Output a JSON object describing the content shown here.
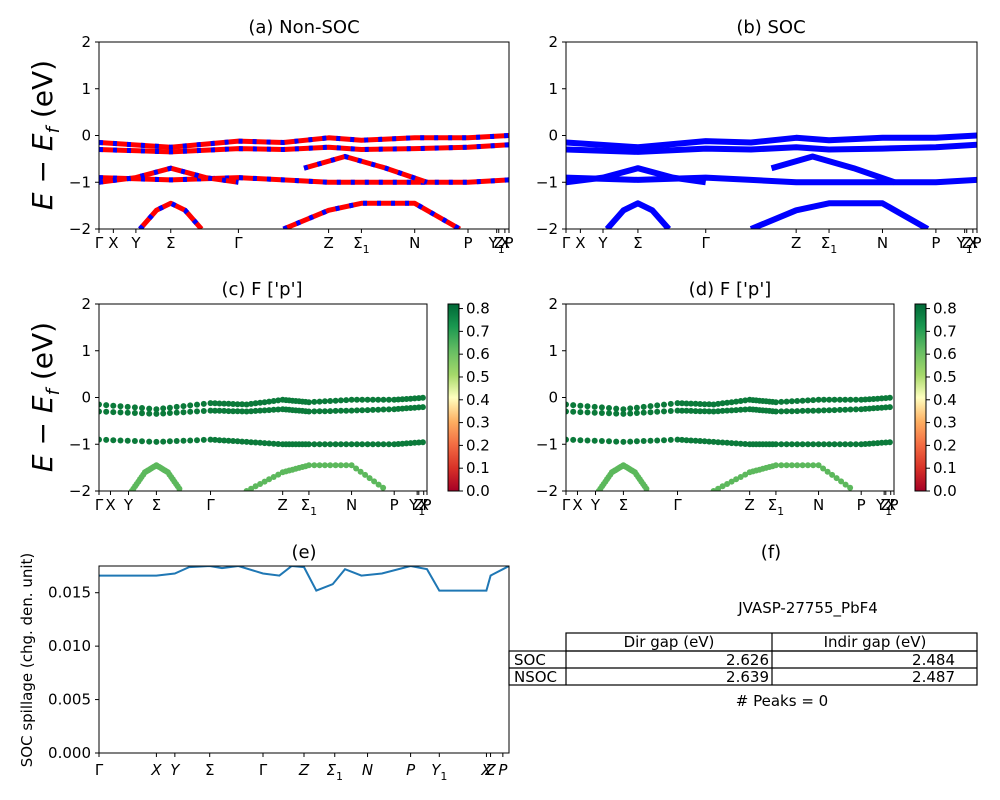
{
  "figure": {
    "panels": [
      {
        "id": "a",
        "title": "(a) Non-SOC"
      },
      {
        "id": "b",
        "title": "(b) SOC"
      },
      {
        "id": "c",
        "title": "(c)  F ['p']"
      },
      {
        "id": "d",
        "title": "(d) F ['p']"
      },
      {
        "id": "e",
        "title": "(e)"
      },
      {
        "id": "f",
        "title": "(f)"
      }
    ],
    "band_ylabel": "E − E_f (eV)",
    "band_ylim": [
      -2,
      2
    ],
    "band_yticks": [
      "2",
      "1",
      "0",
      "−1",
      "−2"
    ],
    "kpath_labels": [
      "Γ",
      "X",
      "Y",
      "Σ",
      "Γ",
      "Z",
      "Σ1",
      "N",
      "P",
      "Y1",
      "Z",
      "X",
      "P"
    ],
    "kpath_positions": [
      0,
      0.035,
      0.09,
      0.175,
      0.34,
      0.56,
      0.64,
      0.77,
      0.9,
      0.97,
      0.975,
      0.99,
      1.0
    ],
    "colorbar": {
      "ticks": [
        "0.0",
        "0.1",
        "0.2",
        "0.3",
        "0.4",
        "0.5",
        "0.6",
        "0.7",
        "0.8"
      ],
      "min": 0.0,
      "max": 0.82,
      "colormap": "RdYlGn"
    },
    "colors": {
      "nsoc_a": "#ff0000",
      "nsoc_b": "#0000ff",
      "soc": "#0000ff",
      "spillage": "#1f77b4",
      "proj_high": "#0b7a3a",
      "proj_mid": "#5cb85c"
    }
  },
  "chart_data": [
    {
      "type": "line",
      "panel": "a",
      "title": "(a) Non-SOC",
      "ylabel": "E − E_f (eV)",
      "ylim": [
        -2,
        2
      ],
      "x_ticks": [
        "Γ",
        "X",
        "Y",
        "Σ",
        "Γ",
        "Z",
        "Σ1",
        "N",
        "P",
        "ZY1",
        "X",
        "P"
      ],
      "series": [
        {
          "x": [
            0,
            0.175,
            0.34,
            0.45,
            0.56,
            0.64,
            0.77,
            0.9,
            1.0
          ],
          "y": [
            -0.15,
            -0.25,
            -0.12,
            -0.15,
            -0.05,
            -0.1,
            -0.05,
            -0.05,
            0.0
          ]
        },
        {
          "x": [
            0,
            0.175,
            0.34,
            0.45,
            0.56,
            0.64,
            0.77,
            0.9,
            1.0
          ],
          "y": [
            -0.3,
            -0.35,
            -0.28,
            -0.3,
            -0.25,
            -0.3,
            -0.28,
            -0.25,
            -0.2
          ]
        },
        {
          "x": [
            0,
            0.175,
            0.34,
            0.45,
            0.56,
            0.64,
            0.77,
            0.9,
            1.0
          ],
          "y": [
            -0.9,
            -0.95,
            -0.9,
            -0.95,
            -1.0,
            -1.0,
            -1.0,
            -1.0,
            -0.95
          ]
        },
        {
          "x": [
            0,
            0.09,
            0.175,
            0.26,
            0.34
          ],
          "y": [
            -1.0,
            -0.9,
            -0.7,
            -0.9,
            -1.0
          ]
        },
        {
          "x": [
            0.1,
            0.14,
            0.175,
            0.21,
            0.25
          ],
          "y": [
            -2.0,
            -1.6,
            -1.45,
            -1.6,
            -2.0
          ]
        },
        {
          "x": [
            0.45,
            0.56,
            0.64,
            0.77,
            0.88
          ],
          "y": [
            -2.0,
            -1.6,
            -1.45,
            -1.45,
            -2.0
          ]
        },
        {
          "x": [
            0.5,
            0.6,
            0.7,
            0.8
          ],
          "y": [
            -0.7,
            -0.45,
            -0.7,
            -1.0
          ]
        }
      ]
    },
    {
      "type": "line",
      "panel": "b",
      "title": "(b) SOC",
      "ylabel": "",
      "ylim": [
        -2,
        2
      ],
      "x_ticks": [
        "Γ",
        "X",
        "Y",
        "Σ",
        "Γ",
        "Z",
        "Σ1",
        "N",
        "P",
        "ZY1",
        "X",
        "P"
      ],
      "series": [
        {
          "x": [
            0,
            0.175,
            0.34,
            0.45,
            0.56,
            0.64,
            0.77,
            0.9,
            1.0
          ],
          "y": [
            -0.15,
            -0.25,
            -0.12,
            -0.15,
            -0.05,
            -0.1,
            -0.05,
            -0.05,
            0.0
          ]
        },
        {
          "x": [
            0,
            0.175,
            0.34,
            0.45,
            0.56,
            0.64,
            0.77,
            0.9,
            1.0
          ],
          "y": [
            -0.3,
            -0.35,
            -0.28,
            -0.3,
            -0.25,
            -0.3,
            -0.28,
            -0.25,
            -0.2
          ]
        },
        {
          "x": [
            0,
            0.175,
            0.34,
            0.45,
            0.56,
            0.64,
            0.77,
            0.9,
            1.0
          ],
          "y": [
            -0.9,
            -0.95,
            -0.9,
            -0.95,
            -1.0,
            -1.0,
            -1.0,
            -1.0,
            -0.95
          ]
        },
        {
          "x": [
            0,
            0.09,
            0.175,
            0.26,
            0.34
          ],
          "y": [
            -1.0,
            -0.9,
            -0.7,
            -0.9,
            -1.0
          ]
        },
        {
          "x": [
            0.1,
            0.14,
            0.175,
            0.21,
            0.25
          ],
          "y": [
            -2.0,
            -1.6,
            -1.45,
            -1.6,
            -2.0
          ]
        },
        {
          "x": [
            0.45,
            0.56,
            0.64,
            0.77,
            0.88
          ],
          "y": [
            -2.0,
            -1.6,
            -1.45,
            -1.45,
            -2.0
          ]
        },
        {
          "x": [
            0.5,
            0.6,
            0.7,
            0.8
          ],
          "y": [
            -0.7,
            -0.45,
            -0.7,
            -1.0
          ]
        }
      ]
    },
    {
      "type": "scatter",
      "panel": "c",
      "title": "(c)  F ['p']",
      "ylim": [
        -2,
        2
      ],
      "colorbar_range": [
        0.0,
        0.82
      ],
      "x_ticks": [
        "Γ",
        "X",
        "Y",
        "Σ",
        "Γ",
        "Z",
        "Σ1",
        "N",
        "P",
        "ZY1",
        "X",
        "P"
      ],
      "series": [
        {
          "x": [
            0,
            0.175,
            0.34,
            0.45,
            0.56,
            0.64,
            0.77,
            0.9,
            1.0
          ],
          "y": [
            -0.15,
            -0.25,
            -0.12,
            -0.15,
            -0.05,
            -0.1,
            -0.05,
            -0.05,
            0.0
          ],
          "weight": 0.8
        },
        {
          "x": [
            0,
            0.175,
            0.34,
            0.45,
            0.56,
            0.64,
            0.77,
            0.9,
            1.0
          ],
          "y": [
            -0.3,
            -0.35,
            -0.28,
            -0.3,
            -0.25,
            -0.3,
            -0.28,
            -0.25,
            -0.2
          ],
          "weight": 0.8
        },
        {
          "x": [
            0,
            0.175,
            0.34,
            0.45,
            0.56,
            0.64,
            0.77,
            0.9,
            1.0
          ],
          "y": [
            -0.9,
            -0.95,
            -0.9,
            -0.95,
            -1.0,
            -1.0,
            -1.0,
            -1.0,
            -0.95
          ],
          "weight": 0.78
        },
        {
          "x": [
            0.1,
            0.14,
            0.175,
            0.21,
            0.25
          ],
          "y": [
            -2.0,
            -1.6,
            -1.45,
            -1.6,
            -2.0
          ],
          "weight": 0.62
        },
        {
          "x": [
            0.45,
            0.56,
            0.64,
            0.77,
            0.88
          ],
          "y": [
            -2.0,
            -1.6,
            -1.45,
            -1.45,
            -2.0
          ],
          "weight": 0.65
        }
      ]
    },
    {
      "type": "scatter",
      "panel": "d",
      "title": "(d) F ['p']",
      "ylim": [
        -2,
        2
      ],
      "colorbar_range": [
        0.0,
        0.82
      ],
      "x_ticks": [
        "Γ",
        "X",
        "Y",
        "Σ",
        "Γ",
        "Z",
        "Σ1",
        "N",
        "P",
        "ZY1",
        "X",
        "P"
      ],
      "series": [
        {
          "x": [
            0,
            0.175,
            0.34,
            0.45,
            0.56,
            0.64,
            0.77,
            0.9,
            1.0
          ],
          "y": [
            -0.15,
            -0.25,
            -0.12,
            -0.15,
            -0.05,
            -0.1,
            -0.05,
            -0.05,
            0.0
          ],
          "weight": 0.8
        },
        {
          "x": [
            0,
            0.175,
            0.34,
            0.45,
            0.56,
            0.64,
            0.77,
            0.9,
            1.0
          ],
          "y": [
            -0.3,
            -0.35,
            -0.28,
            -0.3,
            -0.25,
            -0.3,
            -0.28,
            -0.25,
            -0.2
          ],
          "weight": 0.8
        },
        {
          "x": [
            0,
            0.175,
            0.34,
            0.45,
            0.56,
            0.64,
            0.77,
            0.9,
            1.0
          ],
          "y": [
            -0.9,
            -0.95,
            -0.9,
            -0.95,
            -1.0,
            -1.0,
            -1.0,
            -1.0,
            -0.95
          ],
          "weight": 0.78
        },
        {
          "x": [
            0.1,
            0.14,
            0.175,
            0.21,
            0.25
          ],
          "y": [
            -2.0,
            -1.6,
            -1.45,
            -1.6,
            -2.0
          ],
          "weight": 0.62
        },
        {
          "x": [
            0.45,
            0.56,
            0.64,
            0.77,
            0.88
          ],
          "y": [
            -2.0,
            -1.6,
            -1.45,
            -1.45,
            -2.0
          ],
          "weight": 0.65
        }
      ]
    },
    {
      "type": "line",
      "panel": "e",
      "title": "(e)",
      "ylabel": "SOC spillage (chg. den. unit)",
      "ylim": [
        0.0,
        0.0175
      ],
      "yticks": [
        "0.000",
        "0.005",
        "0.010",
        "0.015"
      ],
      "x_ticks": [
        "Γ",
        "X",
        "Y",
        "Σ",
        "Γ",
        "Z",
        "Σ1",
        "N",
        "P",
        "Y1",
        "X",
        "Z",
        "P"
      ],
      "x_tick_positions": [
        0,
        0.14,
        0.185,
        0.27,
        0.4,
        0.5,
        0.575,
        0.655,
        0.76,
        0.83,
        0.945,
        0.955,
        0.985
      ],
      "series": [
        {
          "name": "",
          "x": [
            0,
            0.14,
            0.185,
            0.22,
            0.27,
            0.3,
            0.34,
            0.4,
            0.44,
            0.47,
            0.5,
            0.53,
            0.57,
            0.6,
            0.64,
            0.69,
            0.76,
            0.8,
            0.83,
            0.92,
            0.945,
            0.955,
            0.96,
            0.985,
            1.0
          ],
          "y": [
            0.0166,
            0.0166,
            0.0168,
            0.0174,
            0.0175,
            0.0173,
            0.0175,
            0.0168,
            0.0166,
            0.0175,
            0.0174,
            0.0152,
            0.0158,
            0.0172,
            0.0166,
            0.0168,
            0.0175,
            0.0172,
            0.0152,
            0.0152,
            0.0152,
            0.0166,
            0.0167,
            0.0172,
            0.0175
          ]
        }
      ]
    }
  ],
  "table": {
    "header": "JVASP-27755_PbF4",
    "columns": [
      "Dir gap (eV)",
      "Indir gap (eV)"
    ],
    "rows": [
      {
        "label": "SOC",
        "values": [
          "2.626",
          "2.484"
        ]
      },
      {
        "label": "NSOC",
        "values": [
          "2.639",
          "2.487"
        ]
      }
    ],
    "footer": "# Peaks = 0"
  }
}
